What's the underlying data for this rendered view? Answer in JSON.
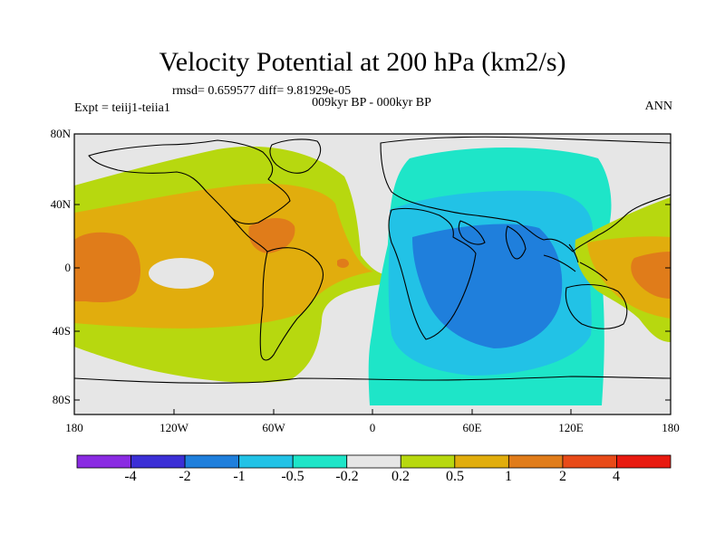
{
  "title": "Velocity Potential at 200 hPa (km2/s)",
  "stats": "rmsd= 0.659577 diff= 9.81929e-05",
  "subtitle": "009kyr BP - 000kyr BP",
  "expt": "Expt = teiij1-teiia1",
  "season": "ANN",
  "lat_labels": [
    "80N",
    "40N",
    "0",
    "40S",
    "80S"
  ],
  "lon_labels": [
    "180",
    "120W",
    "60W",
    "0",
    "60E",
    "120E",
    "180"
  ],
  "colorbar": {
    "labels": [
      "-4",
      "-2",
      "-1",
      "-0.5",
      "-0.2",
      "0.2",
      "0.5",
      "1",
      "2",
      "4"
    ],
    "colors": [
      "#8a2be2",
      "#3b2fd6",
      "#1f7fdc",
      "#22c2e6",
      "#1ee5c8",
      "#e6e6e6",
      "#b7d80f",
      "#e1ad0d",
      "#e07c1a",
      "#e84a18",
      "#e81a10"
    ]
  }
}
